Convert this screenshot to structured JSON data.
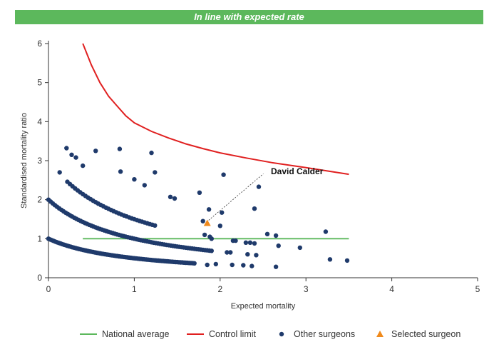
{
  "banner": {
    "title": "In line with expected rate"
  },
  "colors": {
    "banner": "#5cb85c",
    "national_average": "#5cb85c",
    "control_limit": "#e02020",
    "other_surgeons": "#1f3a6b",
    "selected_surgeon": "#f08a1c"
  },
  "chart_data": {
    "type": "scatter",
    "xlabel": "Expected mortality",
    "ylabel": "Standardised mortality ratio",
    "xlim": [
      0,
      5
    ],
    "ylim": [
      0,
      6
    ],
    "x_ticks": [
      "0",
      "1",
      "2",
      "3",
      "4",
      "5"
    ],
    "y_ticks": [
      "0",
      "1",
      "2",
      "3",
      "4",
      "5",
      "6"
    ],
    "grid": false,
    "legend_position": "bottom",
    "legend": [
      {
        "label": "National average",
        "kind": "line",
        "color": "#5cb85c"
      },
      {
        "label": "Control limit",
        "kind": "line",
        "color": "#e02020"
      },
      {
        "label": "Other surgeons",
        "kind": "dot",
        "color": "#1f3a6b"
      },
      {
        "label": "Selected surgeon",
        "kind": "triangle",
        "color": "#f08a1c"
      }
    ],
    "national_average": {
      "x": [
        0.4,
        3.5
      ],
      "y": 1
    },
    "control_limit": {
      "x": [
        0.4,
        0.5,
        0.6,
        0.7,
        0.8,
        0.9,
        1.0,
        1.2,
        1.4,
        1.6,
        1.8,
        2.0,
        2.3,
        2.6,
        3.0,
        3.5
      ],
      "y": [
        6.0,
        5.45,
        5.0,
        4.65,
        4.4,
        4.15,
        3.97,
        3.75,
        3.58,
        3.43,
        3.31,
        3.2,
        3.07,
        2.95,
        2.82,
        2.65
      ]
    },
    "selected_surgeon": {
      "name": "David Calder",
      "x": 1.85,
      "y": 1.4
    },
    "annotation": {
      "text": "David Calder",
      "x": 2.57,
      "y": 2.7
    },
    "other_surgeons": {
      "bands": [
        {
          "k": 1,
          "x_start": 0.0,
          "x_end": 1.7,
          "step": 0.02
        },
        {
          "k": 2,
          "x_start": 0.0,
          "x_end": 1.9,
          "step": 0.025
        },
        {
          "k": 3,
          "x_start": 0.22,
          "x_end": 1.25,
          "step": 0.03
        }
      ],
      "points": [
        {
          "x": 0.13,
          "y": 2.7
        },
        {
          "x": 0.21,
          "y": 3.32
        },
        {
          "x": 0.27,
          "y": 3.15
        },
        {
          "x": 0.32,
          "y": 3.08
        },
        {
          "x": 0.4,
          "y": 2.87
        },
        {
          "x": 0.55,
          "y": 3.25
        },
        {
          "x": 0.83,
          "y": 3.3
        },
        {
          "x": 0.84,
          "y": 2.72
        },
        {
          "x": 1.0,
          "y": 2.52
        },
        {
          "x": 1.12,
          "y": 2.37
        },
        {
          "x": 1.2,
          "y": 3.2
        },
        {
          "x": 1.24,
          "y": 2.7
        },
        {
          "x": 1.42,
          "y": 2.07
        },
        {
          "x": 1.47,
          "y": 2.03
        },
        {
          "x": 1.76,
          "y": 2.18
        },
        {
          "x": 1.87,
          "y": 1.75
        },
        {
          "x": 1.8,
          "y": 1.45
        },
        {
          "x": 2.0,
          "y": 1.33
        },
        {
          "x": 2.02,
          "y": 1.67
        },
        {
          "x": 2.04,
          "y": 2.64
        },
        {
          "x": 2.08,
          "y": 0.65
        },
        {
          "x": 2.12,
          "y": 0.65
        },
        {
          "x": 2.15,
          "y": 0.95
        },
        {
          "x": 2.18,
          "y": 0.95
        },
        {
          "x": 2.3,
          "y": 0.9
        },
        {
          "x": 2.32,
          "y": 0.6
        },
        {
          "x": 2.35,
          "y": 0.9
        },
        {
          "x": 2.4,
          "y": 0.88
        },
        {
          "x": 2.42,
          "y": 0.58
        },
        {
          "x": 2.4,
          "y": 1.77
        },
        {
          "x": 2.45,
          "y": 2.33
        },
        {
          "x": 2.14,
          "y": 0.33
        },
        {
          "x": 2.27,
          "y": 0.32
        },
        {
          "x": 2.37,
          "y": 0.3
        },
        {
          "x": 2.55,
          "y": 1.12
        },
        {
          "x": 2.65,
          "y": 1.08
        },
        {
          "x": 2.65,
          "y": 0.28
        },
        {
          "x": 2.68,
          "y": 0.82
        },
        {
          "x": 2.93,
          "y": 0.77
        },
        {
          "x": 3.23,
          "y": 1.18
        },
        {
          "x": 3.28,
          "y": 0.47
        },
        {
          "x": 3.48,
          "y": 0.44
        },
        {
          "x": 1.82,
          "y": 1.1
        },
        {
          "x": 1.88,
          "y": 1.05
        },
        {
          "x": 1.9,
          "y": 1.0
        },
        {
          "x": 1.95,
          "y": 0.35
        },
        {
          "x": 1.85,
          "y": 0.33
        }
      ]
    }
  }
}
